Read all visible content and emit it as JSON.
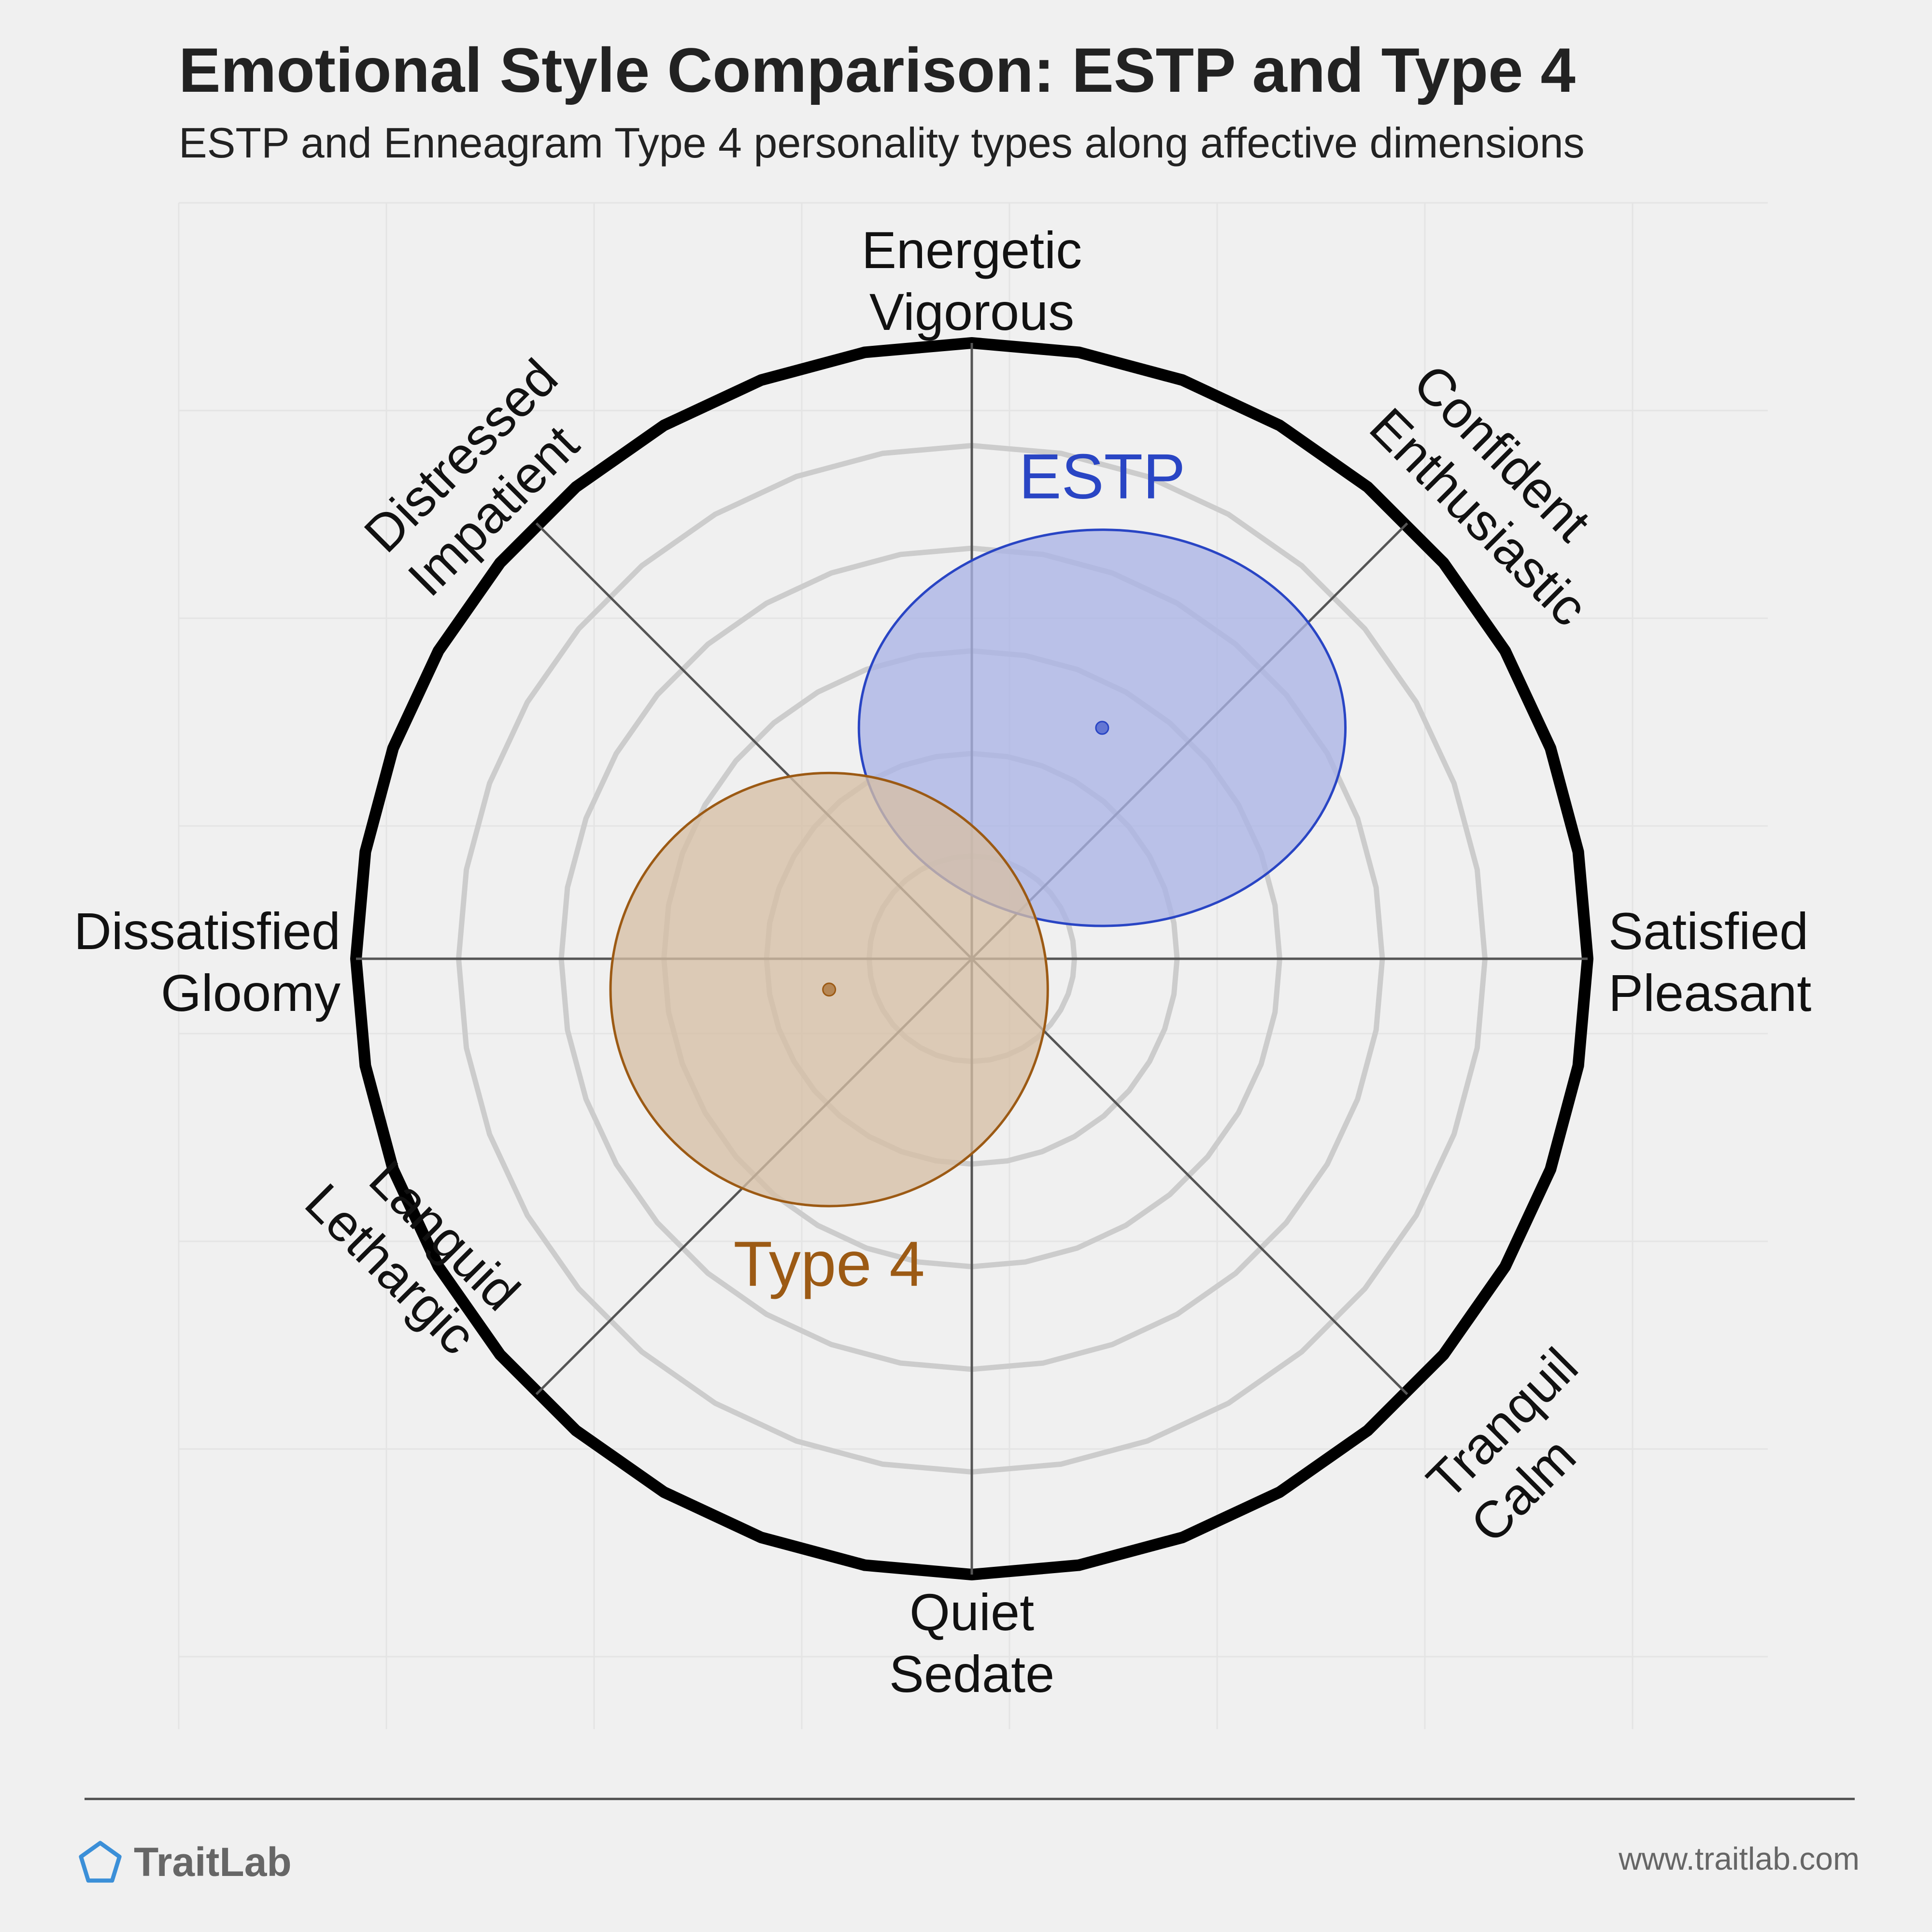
{
  "header": {
    "title": "Emotional Style Comparison: ESTP and Type 4",
    "subtitle": "ESTP and Enneagram Type 4 personality types along affective dimensions"
  },
  "footer": {
    "brand": "TraitLab",
    "url": "www.traitlab.com",
    "brand_icon": "pentagon-icon",
    "brand_color": "#3b8fd8"
  },
  "chart_data": {
    "type": "scatter",
    "title": "Emotional Style Comparison: ESTP and Type 4",
    "subtitle": "ESTP and Enneagram Type 4 personality types along affective dimensions",
    "x_axis": {
      "negative": [
        "Dissatisfied",
        "Gloomy"
      ],
      "positive": [
        "Satisfied",
        "Pleasant"
      ]
    },
    "y_axis": {
      "positive": [
        "Energetic",
        "Vigorous"
      ],
      "negative": [
        "Quiet",
        "Sedate"
      ]
    },
    "diagonals": {
      "upper_right": [
        "Confident",
        "Enthusiastic"
      ],
      "upper_left": [
        "Distressed",
        "Impatient"
      ],
      "lower_left": [
        "Languid",
        "Lethargic"
      ],
      "lower_right": [
        "Tranquil",
        "Calm"
      ]
    },
    "range": [
      -6,
      6
    ],
    "rings": [
      1,
      2,
      3,
      4,
      5
    ],
    "grid": true,
    "series": [
      {
        "name": "ESTP",
        "x": 1.27,
        "y": 2.25,
        "rx": 2.37,
        "ry": 1.93,
        "color": "#2945c4",
        "fill": "#aab4e6"
      },
      {
        "name": "Type 4",
        "x": -1.39,
        "y": -0.3,
        "rx": 2.13,
        "ry": 2.11,
        "color": "#9c5a14",
        "fill": "#d6bfa5"
      }
    ]
  }
}
